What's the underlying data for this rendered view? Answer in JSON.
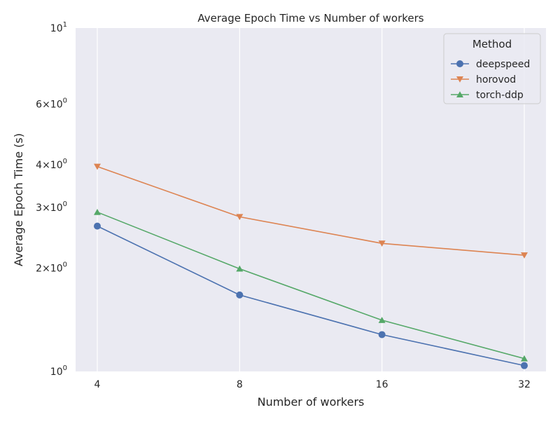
{
  "chart_data": {
    "type": "line",
    "title": "Average Epoch Time vs Number of workers",
    "xlabel": "Number of workers",
    "ylabel": "Average Epoch Time (s)",
    "x_scale": "log2",
    "y_scale": "log",
    "x": [
      4,
      8,
      16,
      32
    ],
    "x_tick_labels": [
      "4",
      "8",
      "16",
      "32"
    ],
    "ylim": [
      1,
      10
    ],
    "y_major_ticks": [
      {
        "value": 1,
        "base": "10",
        "exp": "0"
      },
      {
        "value": 10,
        "base": "10",
        "exp": "1"
      }
    ],
    "y_minor_ticks": [
      {
        "value": 2,
        "mantissa": "2",
        "base": "10",
        "exp": "0"
      },
      {
        "value": 3,
        "mantissa": "3",
        "base": "10",
        "exp": "0"
      },
      {
        "value": 4,
        "mantissa": "4",
        "base": "10",
        "exp": "0"
      },
      {
        "value": 6,
        "mantissa": "6",
        "base": "10",
        "exp": "0"
      }
    ],
    "grid": true,
    "legend": {
      "title": "Method",
      "placement": "top-right"
    },
    "series": [
      {
        "name": "deepspeed",
        "marker": "circle",
        "color": "#4c72b0",
        "values": [
          2.65,
          1.67,
          1.28,
          1.04
        ]
      },
      {
        "name": "horovod",
        "marker": "triangle-down",
        "color": "#dd8452",
        "values": [
          3.95,
          2.82,
          2.36,
          2.18
        ]
      },
      {
        "name": "torch-ddp",
        "marker": "triangle-up",
        "color": "#55a868",
        "values": [
          2.91,
          1.99,
          1.41,
          1.09
        ]
      }
    ],
    "colors": {
      "plot_background": "#eaeaf2",
      "grid": "#ffffff"
    }
  }
}
